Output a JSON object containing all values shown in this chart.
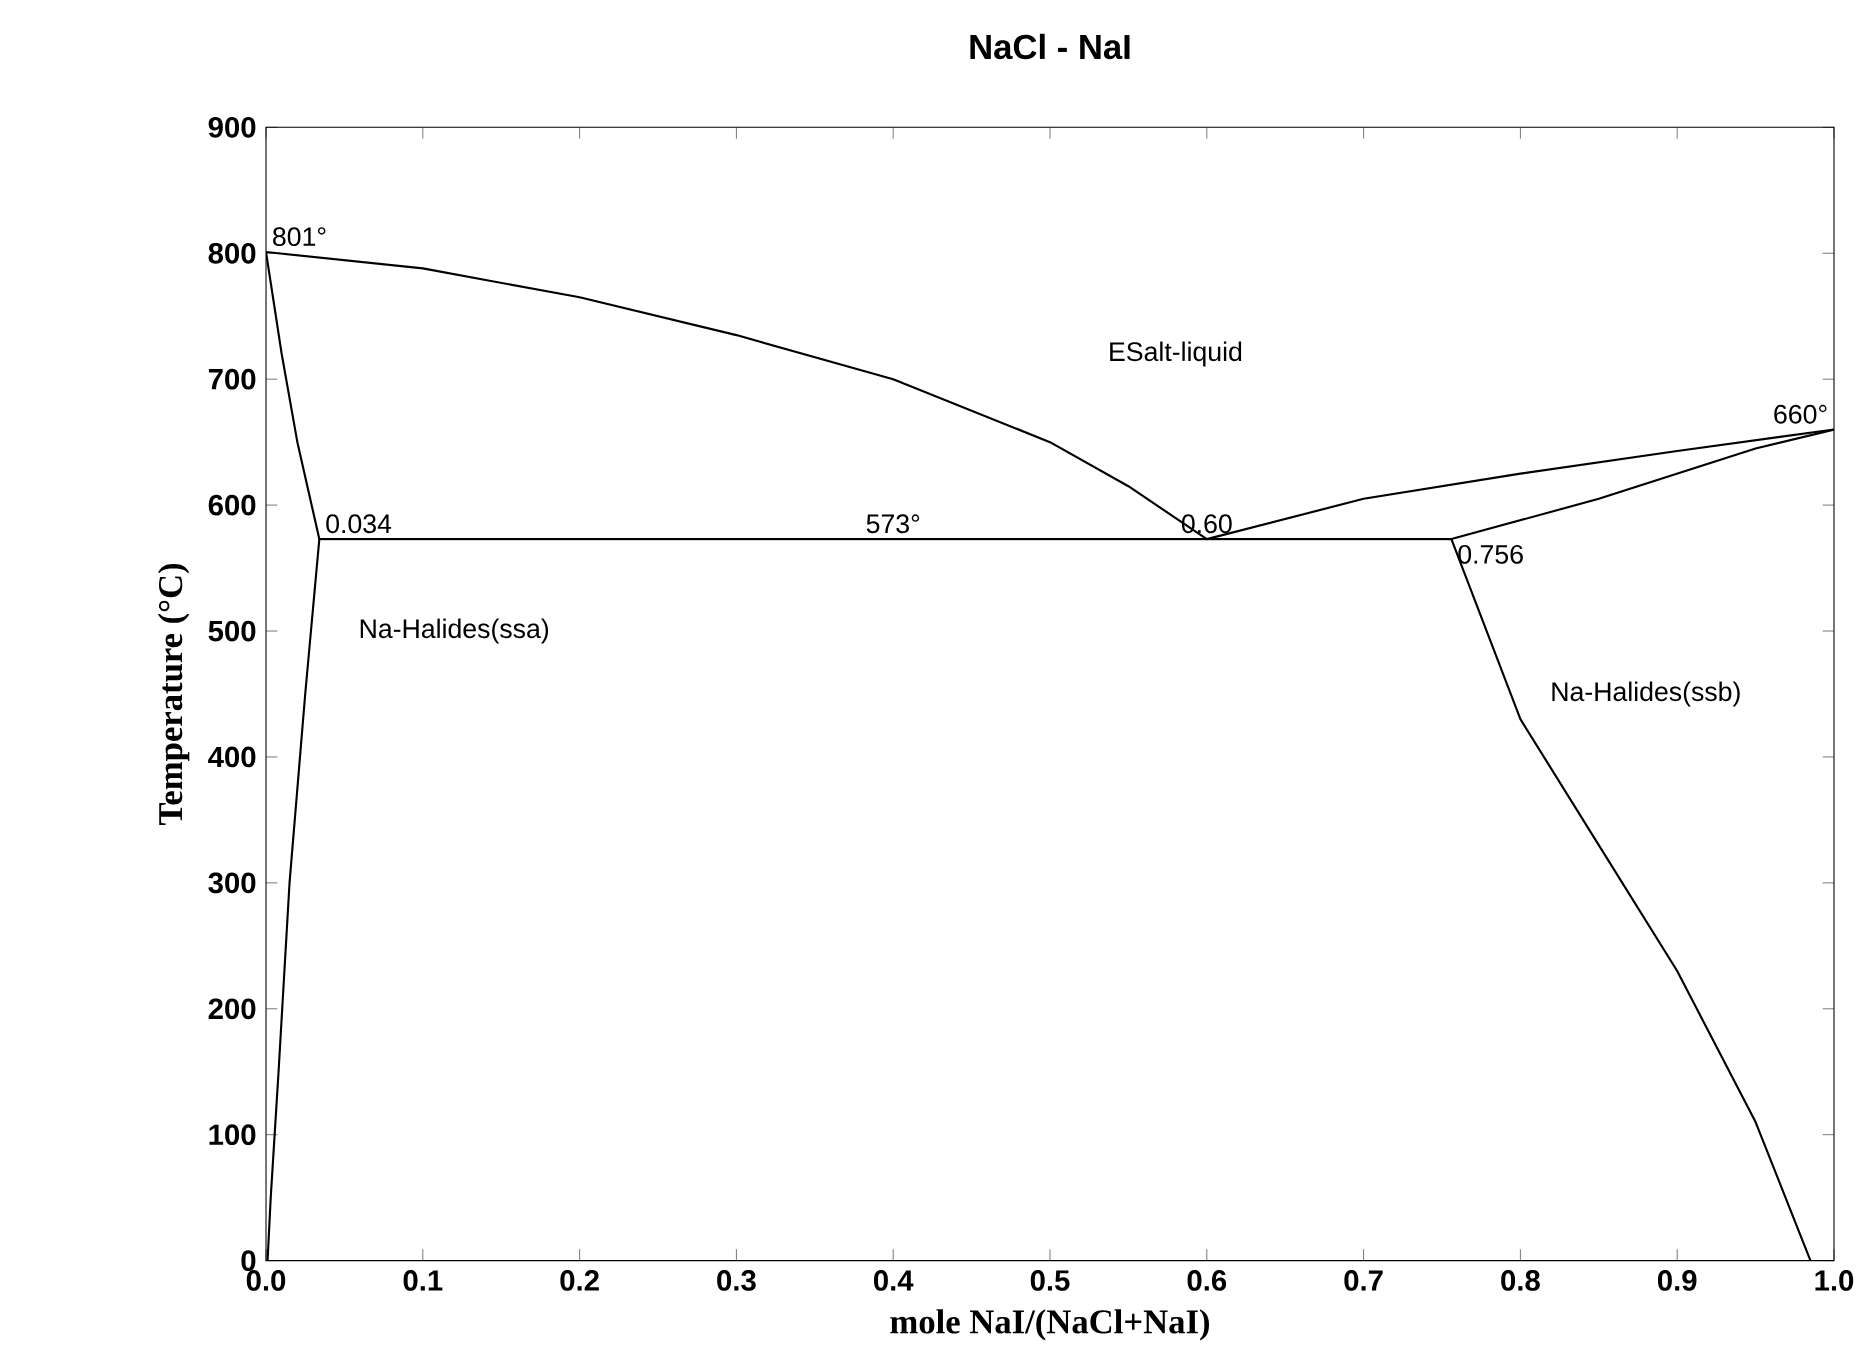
{
  "chart_data": {
    "type": "line",
    "title": "NaCl - NaI",
    "xlabel": "mole NaI/(NaCl+NaI)",
    "ylabel": "Temperature (°C)",
    "xlim": [
      0,
      1
    ],
    "ylim": [
      0,
      900
    ],
    "xticks": [
      {
        "value": 0,
        "label": "0.0"
      },
      0.1,
      0.2,
      0.3,
      0.4,
      0.5,
      0.6,
      0.7,
      0.8,
      0.9,
      {
        "value": 1,
        "label": "1.0"
      }
    ],
    "yticks": [
      0,
      100,
      200,
      300,
      400,
      500,
      600,
      700,
      800,
      900
    ],
    "grid": false,
    "marker": "none",
    "line_style": "solid",
    "series": [
      {
        "color": "#000000",
        "x": [
          0,
          0.1,
          0.2,
          0.3,
          0.4,
          0.5,
          0.55,
          0.6,
          0.7,
          0.8,
          0.9,
          1.0
        ],
        "values": [
          801,
          788,
          765,
          735,
          700,
          650,
          615,
          573,
          605,
          625,
          643,
          660
        ]
      },
      {
        "color": "#000000",
        "x": [
          0,
          0.01,
          0.02,
          0.034,
          0.756,
          0.85,
          0.95,
          1.0
        ],
        "values": [
          801,
          720,
          650,
          573,
          573,
          605,
          645,
          660
        ]
      },
      {
        "color": "#000000",
        "x": [
          0.034,
          0.025,
          0.015,
          0.008,
          0.003,
          0.001
        ],
        "values": [
          573,
          450,
          300,
          150,
          50,
          0
        ]
      },
      {
        "color": "#000000",
        "x": [
          0.756,
          0.8,
          0.85,
          0.9,
          0.95,
          0.985
        ],
        "values": [
          573,
          430,
          330,
          230,
          110,
          0
        ]
      }
    ],
    "annotations": [
      {
        "text": "801°",
        "x": 0,
        "y": 801
      },
      {
        "text": "660°",
        "x": 1,
        "y": 660
      },
      {
        "text": "573°",
        "x": 0.4,
        "y": 573
      },
      {
        "text": "0.034",
        "x": 0.034,
        "y": 573
      },
      {
        "text": "0.60",
        "x": 0.6,
        "y": 573
      },
      {
        "text": "0.756",
        "x": 0.756,
        "y": 573
      },
      "ESalt-liquid",
      "Na-Halides(ssa)",
      "Na-Halides(ssb)"
    ]
  }
}
